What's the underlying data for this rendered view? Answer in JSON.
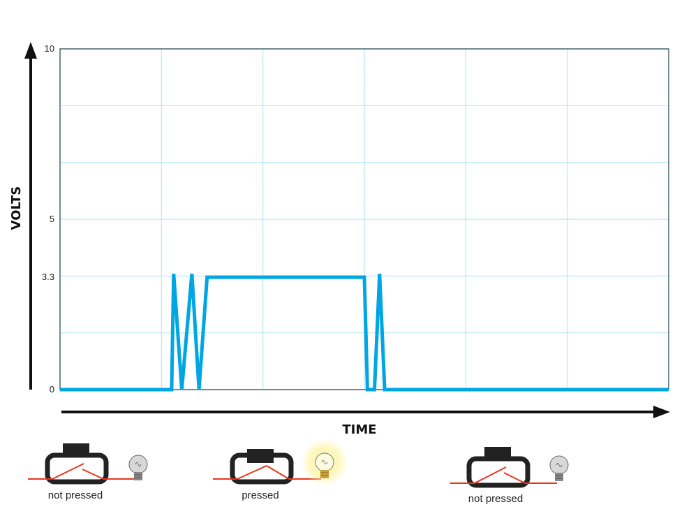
{
  "chart_data": {
    "type": "line",
    "ylabel": "VOLTS",
    "xlabel": "TIME",
    "ylim": [
      0,
      10
    ],
    "y_tick_labels": [
      {
        "value": 0,
        "label": "0"
      },
      {
        "value": 3.3,
        "label": "3.3"
      },
      {
        "value": 5,
        "label": "5"
      },
      {
        "value": 10,
        "label": "10"
      }
    ],
    "grid": true,
    "series": [
      {
        "color": "#00a6e3",
        "points": [
          [
            0.0,
            0
          ],
          [
            1.1,
            0
          ],
          [
            1.12,
            3.4
          ],
          [
            1.2,
            0
          ],
          [
            1.3,
            3.4
          ],
          [
            1.37,
            0
          ],
          [
            1.45,
            3.3
          ],
          [
            3.0,
            3.3
          ],
          [
            3.03,
            0
          ],
          [
            3.1,
            0
          ],
          [
            3.15,
            3.4
          ],
          [
            3.2,
            0
          ],
          [
            6.0,
            0
          ]
        ]
      }
    ],
    "xlim": [
      0,
      6
    ]
  },
  "colors": {
    "grid": "#b9e4f5",
    "signal": "#00a6e3",
    "axis": "#111111",
    "wire": "#e8361e",
    "glow": "#fff3a0"
  },
  "states": [
    {
      "caption": "not pressed",
      "pressed": false,
      "bulb_on": false
    },
    {
      "caption": "pressed",
      "pressed": true,
      "bulb_on": true
    },
    {
      "caption": "not pressed",
      "pressed": false,
      "bulb_on": false
    }
  ]
}
